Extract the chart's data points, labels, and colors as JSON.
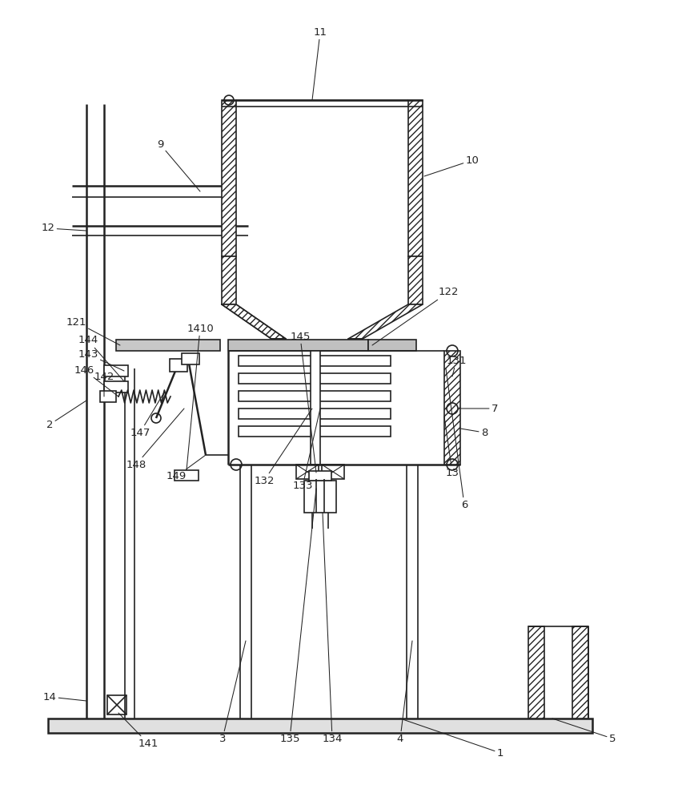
{
  "bg_color": "#ffffff",
  "line_color": "#222222",
  "fig_width": 8.42,
  "fig_height": 10.0
}
